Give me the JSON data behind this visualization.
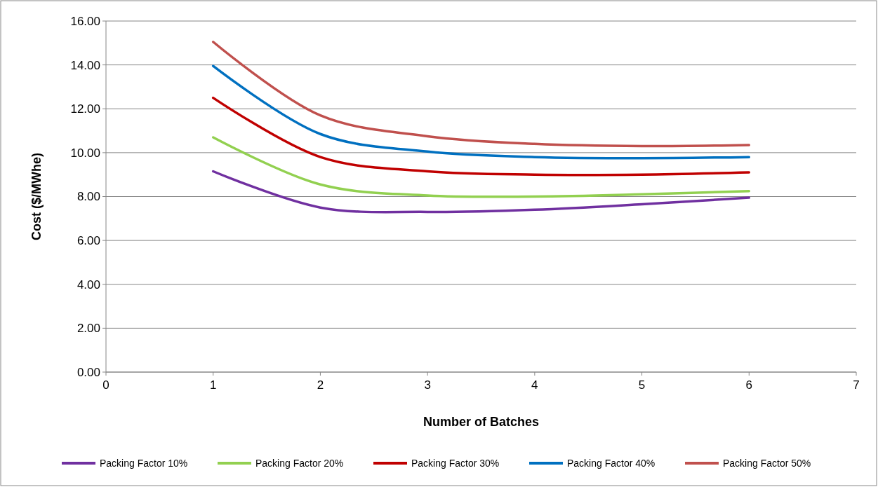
{
  "chart_data": {
    "type": "line",
    "xlabel": "Number of Batches",
    "ylabel": "Cost ($/MWhe)",
    "x": [
      1,
      2,
      3,
      4,
      5,
      6
    ],
    "series": [
      {
        "name": "Packing Factor 10%",
        "color": "#7030a0",
        "values": [
          9.15,
          7.5,
          7.3,
          7.4,
          7.65,
          7.95
        ]
      },
      {
        "name": "Packing Factor 20%",
        "color": "#92d050",
        "values": [
          10.7,
          8.55,
          8.05,
          8.0,
          8.1,
          8.25
        ]
      },
      {
        "name": "Packing Factor 30%",
        "color": "#c00000",
        "values": [
          12.5,
          9.8,
          9.15,
          9.0,
          9.0,
          9.1
        ]
      },
      {
        "name": "Packing Factor 40%",
        "color": "#0070c0",
        "values": [
          13.95,
          10.85,
          10.05,
          9.8,
          9.75,
          9.8
        ]
      },
      {
        "name": "Packing Factor 50%",
        "color": "#c0504d",
        "values": [
          15.05,
          11.7,
          10.75,
          10.4,
          10.3,
          10.35
        ]
      }
    ],
    "xlim": [
      0,
      7
    ],
    "xticks": [
      0,
      1,
      2,
      3,
      4,
      5,
      6,
      7
    ],
    "ylim": [
      0,
      16
    ],
    "yticks": [
      {
        "value": 0,
        "label": "0.00"
      },
      {
        "value": 2,
        "label": "2.00"
      },
      {
        "value": 4,
        "label": "4.00"
      },
      {
        "value": 6,
        "label": "6.00"
      },
      {
        "value": 8,
        "label": "8.00"
      },
      {
        "value": 10,
        "label": "10.00"
      },
      {
        "value": 12,
        "label": "12.00"
      },
      {
        "value": 14,
        "label": "14.00"
      },
      {
        "value": 16,
        "label": "16.00"
      }
    ],
    "grid": "y",
    "legend": "bottom",
    "marker": "none",
    "line_style": "solid"
  }
}
